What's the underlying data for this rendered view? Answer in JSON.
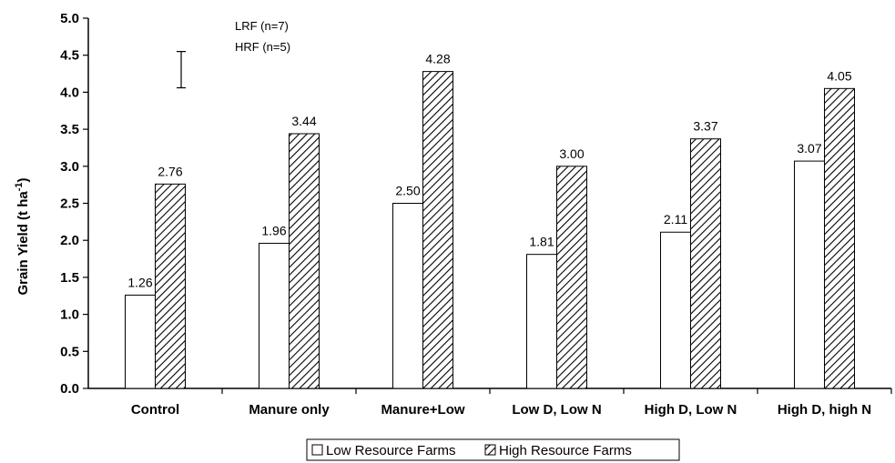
{
  "chart_data": {
    "type": "bar",
    "title": "",
    "xlabel": "",
    "ylabel": "Grain Yield (t ha",
    "ylabel_sup": "-1",
    "ylabel_close": ")",
    "ylim": [
      0,
      5
    ],
    "ytick_step": 0.5,
    "yticks": [
      "0.0",
      "0.5",
      "1.0",
      "1.5",
      "2.0",
      "2.5",
      "3.0",
      "3.5",
      "4.0",
      "4.5",
      "5.0"
    ],
    "categories": [
      "Control",
      "Manure only",
      "Manure+Low",
      "Low D, Low N",
      "High D, Low N",
      "High D, high N"
    ],
    "series": [
      {
        "name": "Low Resource Farms",
        "values": [
          1.26,
          1.96,
          2.5,
          1.81,
          2.11,
          3.07
        ],
        "labels": [
          "1.26",
          "1.96",
          "2.50",
          "1.81",
          "2.11",
          "3.07"
        ],
        "fill": "#ffffff"
      },
      {
        "name": "High Resource Farms",
        "values": [
          2.76,
          3.44,
          4.28,
          3.0,
          3.37,
          4.05
        ],
        "labels": [
          "2.76",
          "3.44",
          "4.28",
          "3.00",
          "3.37",
          "4.05"
        ],
        "fill": "hatch"
      }
    ],
    "annotations": {
      "lrf": "LRF (n=7)",
      "hrf": "HRF (n=5)",
      "error_bar": {
        "low": 4.06,
        "high": 4.55
      }
    },
    "legend_position": "bottom-center",
    "grid": false
  }
}
